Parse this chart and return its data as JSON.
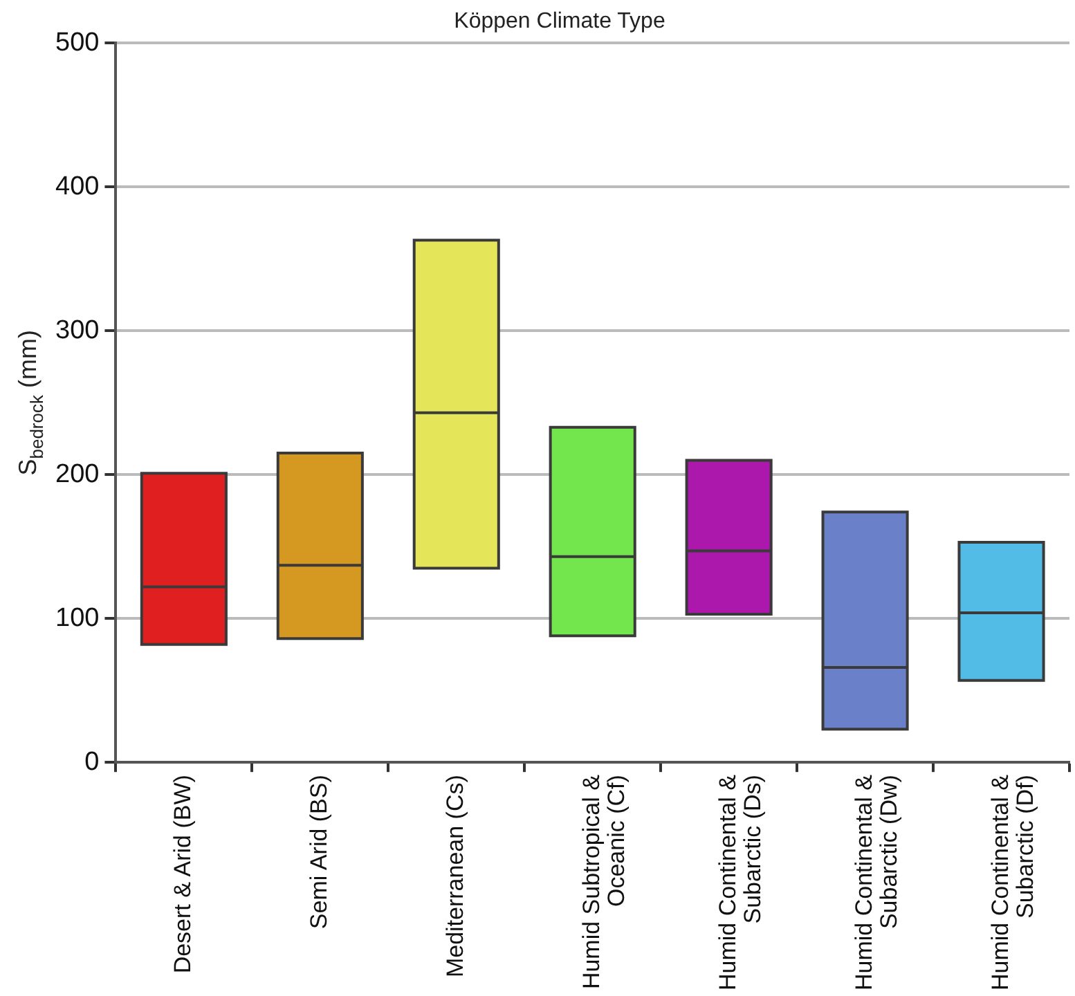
{
  "chart_data": {
    "type": "box",
    "title": "Köppen Climate Type",
    "ylabel": "S$_{bedrock}$ (mm)",
    "categories": [
      "Desert & Arid (BW)",
      "Semi Arid (BS)",
      "Mediterranean (Cs)",
      "Humid Subtropical & Oceanic (Cf)",
      "Humid Continental & Subarctic (Ds)",
      "Humid Continental & Subarctic (Dw)",
      "Humid Continental & Subarctic (Df)"
    ],
    "colors": [
      "#e02020",
      "#d59820",
      "#e5e55a",
      "#72e64c",
      "#ab18ab",
      "#6a80c8",
      "#52bce6"
    ],
    "boxes": [
      {
        "low": 82,
        "q1": 82,
        "median": 122,
        "q3": 201,
        "high": 201
      },
      {
        "low": 86,
        "q1": 86,
        "median": 137,
        "q3": 215,
        "high": 215
      },
      {
        "low": 135,
        "q1": 135,
        "median": 243,
        "q3": 363,
        "high": 363
      },
      {
        "low": 88,
        "q1": 88,
        "median": 143,
        "q3": 233,
        "high": 233
      },
      {
        "low": 103,
        "q1": 103,
        "median": 147,
        "q3": 210,
        "high": 210
      },
      {
        "low": 23,
        "q1": 23,
        "median": 66,
        "q3": 174,
        "high": 174
      },
      {
        "low": 57,
        "q1": 57,
        "median": 104,
        "q3": 153,
        "high": 153
      }
    ],
    "ylim": [
      0,
      500
    ],
    "yticks": [
      0,
      100,
      200,
      300,
      400,
      500
    ],
    "grid": "y",
    "legend": false
  }
}
